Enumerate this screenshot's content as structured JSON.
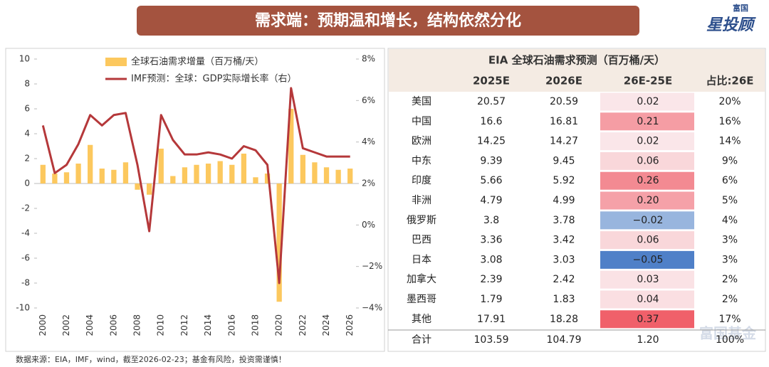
{
  "header": {
    "title": "需求端：预期温和增长，结构依然分化",
    "logo_top": "富国",
    "logo_main": "星投顾",
    "watermark": "富国基金"
  },
  "chart_data": {
    "type": "bar_line",
    "categories": [
      "2000",
      null,
      "2002",
      null,
      "2004",
      null,
      "2006",
      null,
      "2008",
      null,
      "2010",
      null,
      "2012",
      null,
      "2014",
      null,
      "2016",
      null,
      "2018",
      null,
      "2020",
      null,
      "2022",
      null,
      "2024",
      null,
      "2026"
    ],
    "series": [
      {
        "name": "全球石油需求增量（百万桶/天）",
        "type": "bar",
        "color": "#fcc85e",
        "values": [
          1.5,
          0.8,
          0.9,
          1.6,
          3.1,
          1.2,
          1.1,
          1.7,
          -0.5,
          -0.9,
          2.8,
          0.6,
          1.3,
          1.5,
          1.6,
          1.8,
          1.5,
          2.4,
          0.5,
          0.8,
          -9.5,
          6.0,
          2.3,
          1.7,
          1.3,
          1.1,
          1.2
        ]
      },
      {
        "name": "IMF预测：全球：GDP实际增长率（右）",
        "type": "line",
        "axis": "y2",
        "color": "#b5383a",
        "values": [
          4.8,
          2.5,
          2.9,
          3.9,
          5.3,
          4.8,
          5.3,
          5.4,
          2.9,
          -0.3,
          5.3,
          4.1,
          3.4,
          3.4,
          3.5,
          3.4,
          3.2,
          3.8,
          3.6,
          2.9,
          -2.8,
          6.6,
          3.7,
          3.5,
          3.3,
          3.3,
          3.3
        ]
      }
    ],
    "ylim": [
      -10,
      10
    ],
    "yticks": [
      -10,
      -8,
      -6,
      -4,
      -2,
      0,
      2,
      4,
      6,
      8,
      10
    ],
    "y2lim": [
      -4,
      8
    ],
    "y2ticks": [
      {
        "value": -4,
        "label": "−4%"
      },
      {
        "value": -2,
        "label": "−2%"
      },
      {
        "value": 0,
        "label": "0%"
      },
      {
        "value": 2,
        "label": "2%"
      },
      {
        "value": 4,
        "label": "4%"
      },
      {
        "value": 6,
        "label": "6%"
      },
      {
        "value": 8,
        "label": "8%"
      }
    ],
    "legend": "top-left",
    "grid": false,
    "source": "数据来源：EIA，IMF，wind，截至2026-02-23；基金有风险，投资需谨慎！"
  },
  "table": {
    "title": "EIA 全球石油需求预测（百万桶/天）",
    "header": [
      "2025E",
      "2026E",
      "26E-25E",
      "占比:26E"
    ],
    "rows": [
      [
        "美国",
        "20.57",
        "20.59",
        "0.02",
        "20%"
      ],
      [
        "中国",
        "16.6",
        "16.81",
        "0.21",
        "16%"
      ],
      [
        "欧洲",
        "14.25",
        "14.27",
        "0.02",
        "14%"
      ],
      [
        "中东",
        "9.39",
        "9.45",
        "0.06",
        "9%"
      ],
      [
        "印度",
        "5.66",
        "5.92",
        "0.26",
        "6%"
      ],
      [
        "非洲",
        "4.79",
        "4.99",
        "0.20",
        "5%"
      ],
      [
        "俄罗斯",
        "3.8",
        "3.78",
        "−0.02",
        "4%"
      ],
      [
        "巴西",
        "3.36",
        "3.42",
        "0.06",
        "3%"
      ],
      [
        "日本",
        "3.08",
        "3.03",
        "−0.05",
        "3%"
      ],
      [
        "加拿大",
        "2.39",
        "2.42",
        "0.03",
        "2%"
      ],
      [
        "墨西哥",
        "1.79",
        "1.83",
        "0.04",
        "2%"
      ],
      [
        "其他",
        "17.91",
        "18.28",
        "0.37",
        "17%"
      ],
      [
        "合计",
        "103.59",
        "104.79",
        "1.20",
        "100%"
      ]
    ]
  }
}
